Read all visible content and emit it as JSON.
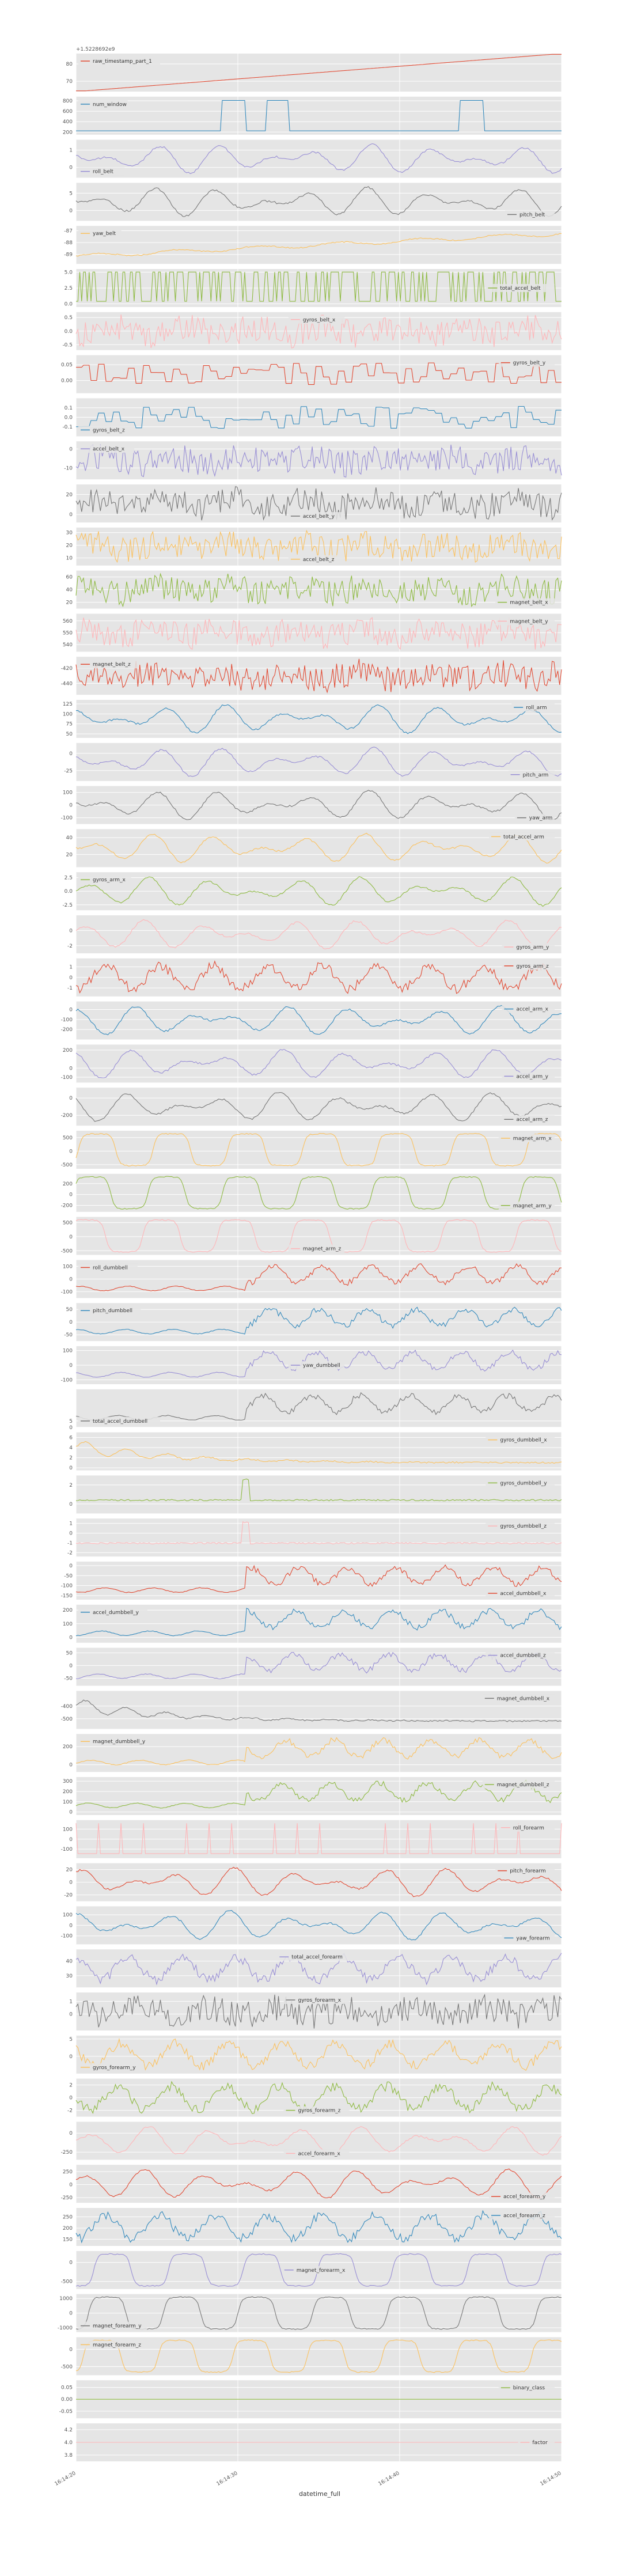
{
  "figure": {
    "offset_text": "+1.5228692e9",
    "xlabel": "datetime_full",
    "x_ticks": [
      "16:14:20",
      "16:14:30",
      "16:14:40",
      "16:14:50"
    ]
  },
  "chart_data": {
    "type": "line",
    "xlabel": "datetime_full",
    "x_tick_labels": [
      "16:14:20",
      "16:14:30",
      "16:14:40",
      "16:14:50"
    ],
    "grid": true,
    "legend_placement": "per-panel",
    "palette": [
      "#E24A33",
      "#348ABD",
      "#988ED5",
      "#777777",
      "#FBC15E",
      "#8EBA42",
      "#FFB5B8"
    ],
    "series": [
      {
        "name": "raw_timestamp_part_1",
        "color": "#E24A33",
        "yticks": [
          "80",
          "70"
        ],
        "ylim": [
          64,
          86
        ],
        "kind": "ramp",
        "legend": "top-left"
      },
      {
        "name": "num_window",
        "color": "#348ABD",
        "yticks": [
          "800",
          "600",
          "400",
          "200"
        ],
        "ylim": [
          150,
          880
        ],
        "kind": "blocks",
        "legend": "top-left"
      },
      {
        "name": "roll_belt",
        "color": "#988ED5",
        "yticks": [
          "1",
          "0"
        ],
        "ylim": [
          -0.6,
          1.6
        ],
        "kind": "smooth",
        "legend": "bottom-left"
      },
      {
        "name": "pitch_belt",
        "color": "#777777",
        "yticks": [
          "5",
          "0"
        ],
        "ylim": [
          -3,
          8
        ],
        "kind": "smooth",
        "legend": "bottom-right"
      },
      {
        "name": "yaw_belt",
        "color": "#FBC15E",
        "yticks": [
          "-87",
          "-88",
          "-89"
        ],
        "ylim": [
          -89.8,
          -86.6
        ],
        "kind": "drift",
        "legend": "top-left"
      },
      {
        "name": "total_accel_belt",
        "color": "#8EBA42",
        "yticks": [
          "5.0",
          "2.5",
          "0.0"
        ],
        "ylim": [
          -0.5,
          5.5
        ],
        "kind": "square",
        "legend": "center-right"
      },
      {
        "name": "gyros_belt_x",
        "color": "#FFB5B8",
        "yticks": [
          "0.5",
          "0.0",
          "-0.5"
        ],
        "ylim": [
          -0.7,
          0.7
        ],
        "kind": "noise",
        "legend": "top-center"
      },
      {
        "name": "gyros_belt_y",
        "color": "#E24A33",
        "yticks": [
          "0.05",
          "0.00"
        ],
        "ylim": [
          -0.04,
          0.08
        ],
        "kind": "steps",
        "legend": "top-right"
      },
      {
        "name": "gyros_belt_z",
        "color": "#348ABD",
        "yticks": [
          "0.1",
          "0.0",
          "-0.1"
        ],
        "ylim": [
          -0.2,
          0.2
        ],
        "kind": "steps",
        "legend": "bottom-left"
      },
      {
        "name": "accel_belt_x",
        "color": "#988ED5",
        "yticks": [
          "0",
          "-10"
        ],
        "ylim": [
          -16,
          4
        ],
        "kind": "noise",
        "legend": "top-left"
      },
      {
        "name": "accel_belt_y",
        "color": "#777777",
        "yticks": [
          "20",
          "0"
        ],
        "ylim": [
          -8,
          30
        ],
        "kind": "noise",
        "legend": "bottom-center"
      },
      {
        "name": "accel_belt_z",
        "color": "#FBC15E",
        "yticks": [
          "30",
          "20",
          "10"
        ],
        "ylim": [
          4,
          34
        ],
        "kind": "noise",
        "legend": "bottom-center"
      },
      {
        "name": "magnet_belt_x",
        "color": "#8EBA42",
        "yticks": [
          "60",
          "40",
          "20"
        ],
        "ylim": [
          10,
          70
        ],
        "kind": "noise",
        "legend": "bottom-right"
      },
      {
        "name": "magnet_belt_y",
        "color": "#FFB5B8",
        "yticks": [
          "560",
          "550",
          "540"
        ],
        "ylim": [
          534,
          566
        ],
        "kind": "noise",
        "legend": "top-right"
      },
      {
        "name": "magnet_belt_z",
        "color": "#E24A33",
        "yticks": [
          "-420",
          "-440"
        ],
        "ylim": [
          -455,
          -405
        ],
        "kind": "noise",
        "legend": "top-left"
      },
      {
        "name": "roll_arm",
        "color": "#348ABD",
        "yticks": [
          "125",
          "100",
          "75",
          "50"
        ],
        "ylim": [
          40,
          135
        ],
        "kind": "smooth",
        "legend": "top-right"
      },
      {
        "name": "pitch_arm",
        "color": "#988ED5",
        "yticks": [
          "0",
          "-25"
        ],
        "ylim": [
          -40,
          15
        ],
        "kind": "smooth",
        "legend": "bottom-right"
      },
      {
        "name": "yaw_arm",
        "color": "#777777",
        "yticks": [
          "100",
          "0",
          "-100"
        ],
        "ylim": [
          -150,
          150
        ],
        "kind": "smooth",
        "legend": "bottom-right"
      },
      {
        "name": "total_accel_arm",
        "color": "#FBC15E",
        "yticks": [
          "40",
          "20"
        ],
        "ylim": [
          5,
          50
        ],
        "kind": "smooth",
        "legend": "top-right"
      },
      {
        "name": "gyros_arm_x",
        "color": "#8EBA42",
        "yticks": [
          "2.5",
          "0.0",
          "-2.5"
        ],
        "ylim": [
          -3.5,
          3.5
        ],
        "kind": "smooth",
        "legend": "top-left"
      },
      {
        "name": "gyros_arm_y",
        "color": "#FFB5B8",
        "yticks": [
          "0",
          "-2"
        ],
        "ylim": [
          -3,
          2
        ],
        "kind": "smooth",
        "legend": "bottom-right"
      },
      {
        "name": "gyros_arm_z",
        "color": "#E24A33",
        "yticks": [
          "1",
          "0",
          "-1"
        ],
        "ylim": [
          -1.8,
          1.8
        ],
        "kind": "noisysmooth",
        "legend": "top-right"
      },
      {
        "name": "accel_arm_x",
        "color": "#348ABD",
        "yticks": [
          "0",
          "-100",
          "-200"
        ],
        "ylim": [
          -300,
          80
        ],
        "kind": "smooth",
        "legend": "top-right"
      },
      {
        "name": "accel_arm_y",
        "color": "#988ED5",
        "yticks": [
          "200",
          "0",
          "-100"
        ],
        "ylim": [
          -160,
          260
        ],
        "kind": "smooth",
        "legend": "bottom-right"
      },
      {
        "name": "accel_arm_z",
        "color": "#777777",
        "yticks": [
          "0",
          "-200"
        ],
        "ylim": [
          -320,
          120
        ],
        "kind": "smooth",
        "legend": "bottom-right"
      },
      {
        "name": "magnet_arm_x",
        "color": "#FBC15E",
        "yticks": [
          "500",
          "0",
          "-500"
        ],
        "ylim": [
          -650,
          750
        ],
        "kind": "plateau",
        "legend": "top-right"
      },
      {
        "name": "magnet_arm_y",
        "color": "#8EBA42",
        "yticks": [
          "200",
          "0",
          "-200"
        ],
        "ylim": [
          -320,
          380
        ],
        "kind": "plateau",
        "legend": "bottom-right"
      },
      {
        "name": "magnet_arm_z",
        "color": "#FFB5B8",
        "yticks": [
          "500",
          "0",
          "-500"
        ],
        "ylim": [
          -650,
          700
        ],
        "kind": "plateau",
        "legend": "bottom-center"
      },
      {
        "name": "roll_dumbbell",
        "color": "#E24A33",
        "yticks": [
          "100",
          "0",
          "-100"
        ],
        "ylim": [
          -150,
          150
        ],
        "kind": "regime",
        "legend": "top-left"
      },
      {
        "name": "pitch_dumbbell",
        "color": "#348ABD",
        "yticks": [
          "50",
          "0",
          "-50"
        ],
        "ylim": [
          -75,
          75
        ],
        "kind": "regime",
        "legend": "top-left"
      },
      {
        "name": "yaw_dumbbell",
        "color": "#988ED5",
        "yticks": [
          "100",
          "0",
          "-100"
        ],
        "ylim": [
          -130,
          130
        ],
        "kind": "regime",
        "legend": "center"
      },
      {
        "name": "total_accel_dumbbell",
        "color": "#777777",
        "yticks": [
          "0",
          "5"
        ],
        "ylim": [
          0,
          30
        ],
        "kind": "regime",
        "legend": "bottom-left"
      },
      {
        "name": "gyros_dumbbell_x",
        "color": "#FBC15E",
        "yticks": [
          "6",
          "4",
          "2",
          "0"
        ],
        "ylim": [
          -0.5,
          7
        ],
        "kind": "decay",
        "legend": "top-right"
      },
      {
        "name": "gyros_dumbbell_y",
        "color": "#8EBA42",
        "yticks": [
          "2",
          "0"
        ],
        "ylim": [
          -1,
          3
        ],
        "kind": "spike",
        "legend": "top-right"
      },
      {
        "name": "gyros_dumbbell_z",
        "color": "#FFB5B8",
        "yticks": [
          "1",
          "0",
          "-1",
          "-2"
        ],
        "ylim": [
          -2.4,
          1.5
        ],
        "kind": "spike",
        "legend": "top-right"
      },
      {
        "name": "accel_dumbbell_x",
        "color": "#E24A33",
        "yticks": [
          "0",
          "-50",
          "-100",
          "-150"
        ],
        "ylim": [
          -170,
          20
        ],
        "kind": "regime",
        "legend": "bottom-right"
      },
      {
        "name": "accel_dumbbell_y",
        "color": "#348ABD",
        "yticks": [
          "200",
          "100",
          "0"
        ],
        "ylim": [
          -40,
          240
        ],
        "kind": "regime",
        "legend": "top-left"
      },
      {
        "name": "accel_dumbbell_z",
        "color": "#988ED5",
        "yticks": [
          "50",
          "0",
          "-50"
        ],
        "ylim": [
          -80,
          70
        ],
        "kind": "regime",
        "legend": "top-right"
      },
      {
        "name": "magnet_dumbbell_x",
        "color": "#777777",
        "yticks": [
          "-400",
          "-500"
        ],
        "ylim": [
          -580,
          -280
        ],
        "kind": "decay",
        "legend": "top-right"
      },
      {
        "name": "magnet_dumbbell_y",
        "color": "#FBC15E",
        "yticks": [
          "200",
          "0"
        ],
        "ylim": [
          -80,
          340
        ],
        "kind": "regime",
        "legend": "top-left"
      },
      {
        "name": "magnet_dumbbell_z",
        "color": "#8EBA42",
        "yticks": [
          "300",
          "200",
          "100",
          "0"
        ],
        "ylim": [
          -30,
          340
        ],
        "kind": "regime",
        "legend": "top-right"
      },
      {
        "name": "roll_forearm",
        "color": "#FFB5B8",
        "yticks": [
          "100",
          "0",
          "-100"
        ],
        "ylim": [
          -190,
          190
        ],
        "kind": "pulses",
        "legend": "top-right"
      },
      {
        "name": "pitch_forearm",
        "color": "#E24A33",
        "yticks": [
          "20",
          "0",
          "-20"
        ],
        "ylim": [
          -30,
          30
        ],
        "kind": "smooth",
        "legend": "top-right"
      },
      {
        "name": "yaw_forearm",
        "color": "#348ABD",
        "yticks": [
          "100",
          "0",
          "-100"
        ],
        "ylim": [
          -180,
          180
        ],
        "kind": "smooth",
        "legend": "bottom-right"
      },
      {
        "name": "total_accel_forearm",
        "color": "#988ED5",
        "yticks": [
          "40",
          "30"
        ],
        "ylim": [
          22,
          48
        ],
        "kind": "noisysmooth",
        "legend": "top-center"
      },
      {
        "name": "gyros_forearm_x",
        "color": "#777777",
        "yticks": [
          "1",
          "0"
        ],
        "ylim": [
          -1.3,
          1.7
        ],
        "kind": "noise",
        "legend": "top-center"
      },
      {
        "name": "gyros_forearm_y",
        "color": "#FBC15E",
        "yticks": [
          "5",
          "0"
        ],
        "ylim": [
          -5,
          6
        ],
        "kind": "noisysmooth",
        "legend": "bottom-left"
      },
      {
        "name": "gyros_forearm_z",
        "color": "#8EBA42",
        "yticks": [
          "2",
          "0",
          "-2"
        ],
        "ylim": [
          -3,
          3
        ],
        "kind": "noisysmooth",
        "legend": "bottom-center"
      },
      {
        "name": "accel_forearm_x",
        "color": "#FFB5B8",
        "yticks": [
          "0",
          "-250"
        ],
        "ylim": [
          -350,
          150
        ],
        "kind": "smooth",
        "legend": "bottom-center"
      },
      {
        "name": "accel_forearm_y",
        "color": "#E24A33",
        "yticks": [
          "250",
          "0",
          "-250"
        ],
        "ylim": [
          -350,
          380
        ],
        "kind": "smooth",
        "legend": "bottom-right"
      },
      {
        "name": "accel_forearm_z",
        "color": "#348ABD",
        "yticks": [
          "250",
          "200",
          "150"
        ],
        "ylim": [
          120,
          290
        ],
        "kind": "noisysmooth",
        "legend": "top-right"
      },
      {
        "name": "magnet_forearm_x",
        "color": "#988ED5",
        "yticks": [
          "0",
          "-500"
        ],
        "ylim": [
          -700,
          300
        ],
        "kind": "plateau",
        "legend": "center"
      },
      {
        "name": "magnet_forearm_y",
        "color": "#777777",
        "yticks": [
          "1000",
          "0",
          "-1000"
        ],
        "ylim": [
          -1300,
          1300
        ],
        "kind": "plateau",
        "legend": "bottom-left"
      },
      {
        "name": "magnet_forearm_z",
        "color": "#FBC15E",
        "yticks": [
          "0",
          "-500"
        ],
        "ylim": [
          -750,
          350
        ],
        "kind": "plateau",
        "legend": "top-left"
      },
      {
        "name": "binary_class",
        "color": "#8EBA42",
        "yticks": [
          "0.05",
          "0.00",
          "-0.05"
        ],
        "ylim": [
          -0.08,
          0.08
        ],
        "kind": "flat",
        "legend": "top-right"
      },
      {
        "name": "factor",
        "color": "#FFB5B8",
        "yticks": [
          "4.2",
          "4.0",
          "3.8"
        ],
        "ylim": [
          3.7,
          4.3
        ],
        "kind": "flat",
        "legend": "center-right"
      }
    ]
  }
}
